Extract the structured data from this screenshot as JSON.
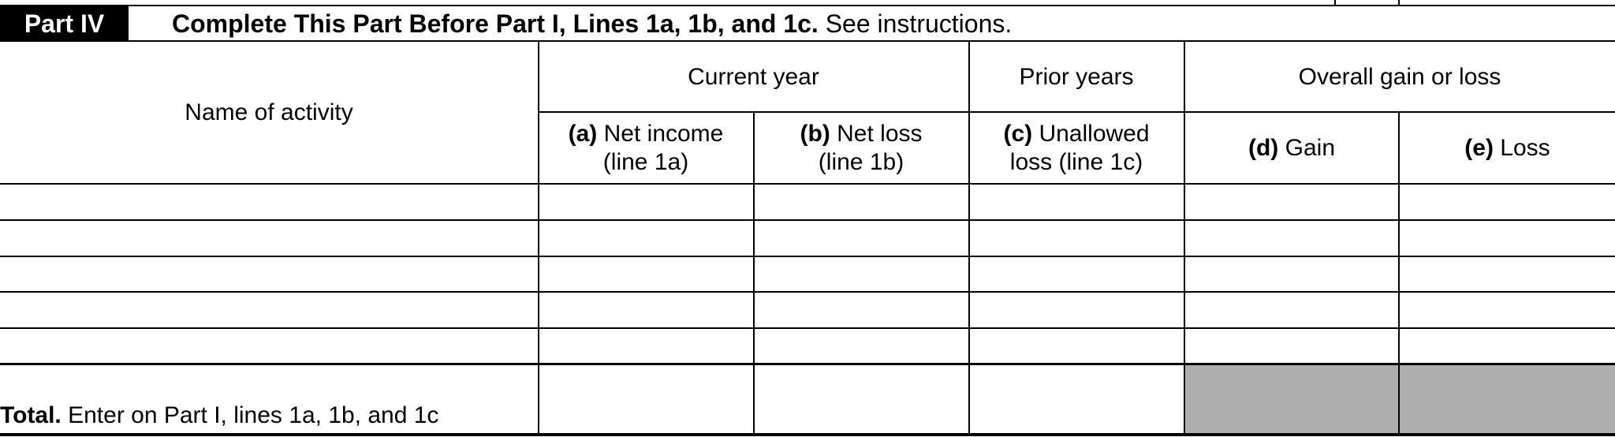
{
  "part": {
    "badge": "Part IV",
    "title_bold": "Complete This Part Before Part I, Lines 1a, 1b, and 1c.",
    "title_rest": " See instructions."
  },
  "headers": {
    "name_of_activity": "Name of activity",
    "current_year": "Current year",
    "prior_years": "Prior years",
    "overall": "Overall gain or loss",
    "columns": [
      {
        "letter": "(a)",
        "label": " Net income",
        "sub": "(line 1a)"
      },
      {
        "letter": "(b)",
        "label": " Net loss",
        "sub": "(line 1b)"
      },
      {
        "letter": "(c)",
        "label": " Unallowed",
        "sub": "loss (line 1c)"
      },
      {
        "letter": "(d)",
        "label": " Gain",
        "sub": ""
      },
      {
        "letter": "(e)",
        "label": " Loss",
        "sub": ""
      }
    ]
  },
  "rows": [
    {
      "activity": "",
      "a": "",
      "b": "",
      "c": "",
      "d": "",
      "e": ""
    },
    {
      "activity": "",
      "a": "",
      "b": "",
      "c": "",
      "d": "",
      "e": ""
    },
    {
      "activity": "",
      "a": "",
      "b": "",
      "c": "",
      "d": "",
      "e": ""
    },
    {
      "activity": "",
      "a": "",
      "b": "",
      "c": "",
      "d": "",
      "e": ""
    },
    {
      "activity": "",
      "a": "",
      "b": "",
      "c": "",
      "d": "",
      "e": ""
    }
  ],
  "total": {
    "label_bold": "Total.",
    "label_rest": " Enter on Part I, lines 1a, 1b, and 1c",
    "a": "",
    "b": "",
    "c": ""
  },
  "colors": {
    "shaded_cell": "#aeaeae",
    "rule": "#000000"
  }
}
